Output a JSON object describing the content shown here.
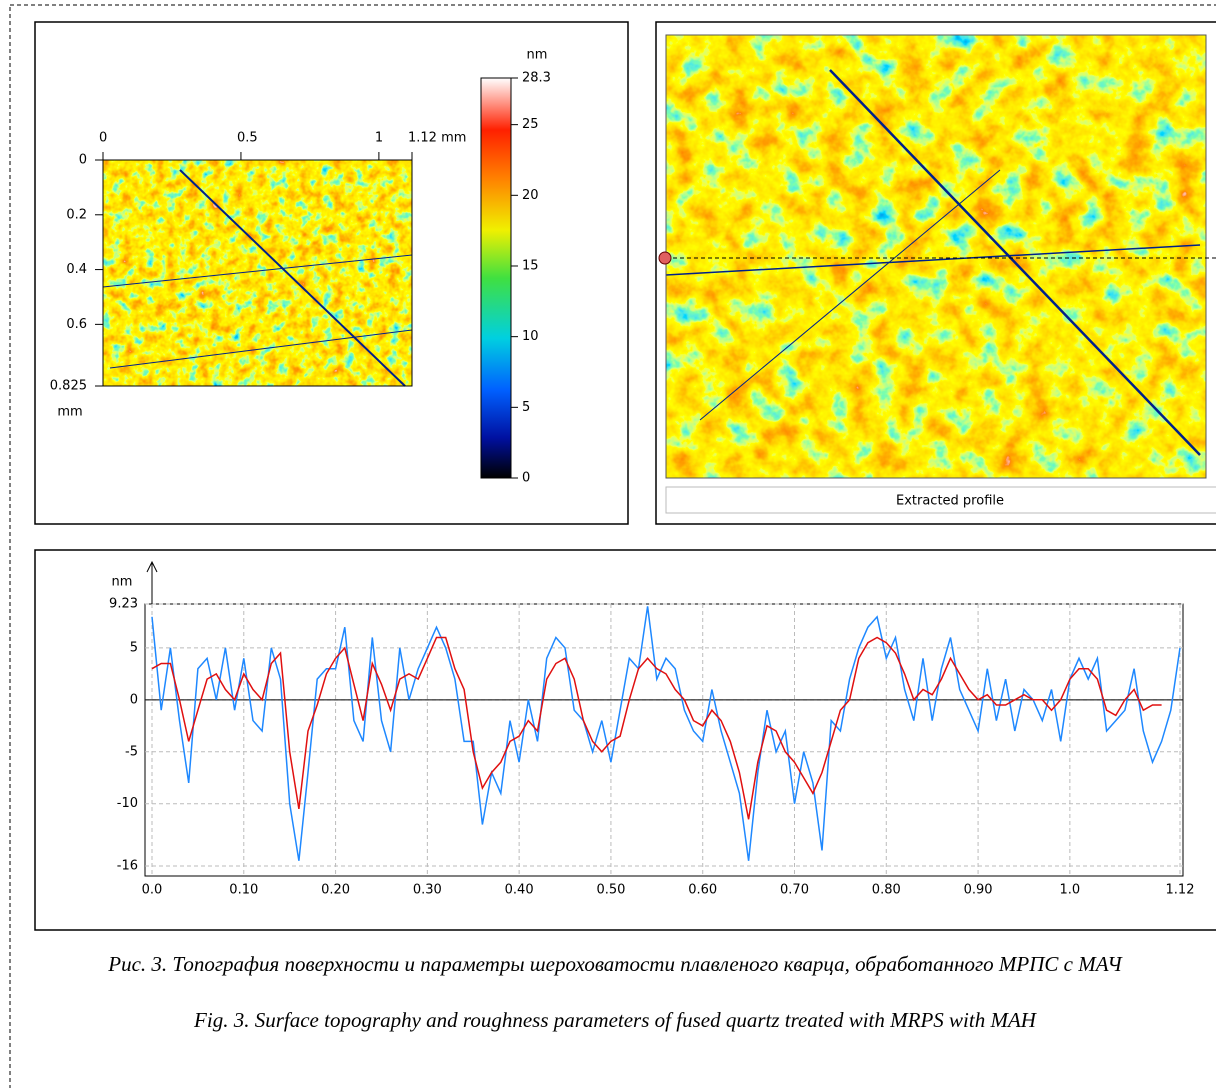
{
  "chart_data": [
    {
      "type": "map",
      "xlim": [
        0,
        1.12
      ],
      "ylim": [
        0,
        0.825
      ],
      "xticks": [
        0,
        0.5,
        1,
        {
          "value": 1.12,
          "label": "1.12 mm"
        }
      ],
      "yticks": [
        0,
        0.2,
        0.4,
        0.6,
        {
          "value": 0.825,
          "label": "0.825"
        }
      ],
      "y_label": "mm",
      "colorbar": {
        "label": "nm",
        "lim": [
          0,
          28.3
        ],
        "ticks": [
          0,
          5,
          10,
          15,
          20,
          25,
          28.3
        ]
      }
    },
    {
      "type": "map",
      "button": "Extracted profile"
    },
    {
      "type": "line",
      "y_label": "nm",
      "grid": true,
      "xlim": [
        0,
        1.12
      ],
      "ylim": [
        -16,
        9.23
      ],
      "xticks": [
        {
          "value": 0,
          "label": "0.0"
        },
        {
          "value": 0.1,
          "label": "0.10"
        },
        {
          "value": 0.2,
          "label": "0.20"
        },
        {
          "value": 0.3,
          "label": "0.30"
        },
        {
          "value": 0.4,
          "label": "0.40"
        },
        {
          "value": 0.5,
          "label": "0.50"
        },
        {
          "value": 0.6,
          "label": "0.60"
        },
        {
          "value": 0.7,
          "label": "0.70"
        },
        {
          "value": 0.8,
          "label": "0.80"
        },
        {
          "value": 0.9,
          "label": "0.90"
        },
        {
          "value": 1,
          "label": "1.0"
        },
        1.12
      ],
      "yticks": [
        -16,
        -10,
        -5,
        0,
        5,
        9.23
      ],
      "x": [
        0,
        0.01,
        0.02,
        0.03,
        0.04,
        0.05,
        0.06,
        0.07,
        0.08,
        0.09,
        0.1,
        0.11,
        0.12,
        0.13,
        0.14,
        0.15,
        0.16,
        0.17,
        0.18,
        0.19,
        0.2,
        0.21,
        0.22,
        0.23,
        0.24,
        0.25,
        0.26,
        0.27,
        0.28,
        0.29,
        0.3,
        0.31,
        0.32,
        0.33,
        0.34,
        0.35,
        0.36,
        0.37,
        0.38,
        0.39,
        0.4,
        0.41,
        0.42,
        0.43,
        0.44,
        0.45,
        0.46,
        0.47,
        0.48,
        0.49,
        0.5,
        0.51,
        0.52,
        0.53,
        0.54,
        0.55,
        0.56,
        0.57,
        0.58,
        0.59,
        0.6,
        0.61,
        0.62,
        0.63,
        0.64,
        0.65,
        0.66,
        0.67,
        0.68,
        0.69,
        0.7,
        0.71,
        0.72,
        0.73,
        0.74,
        0.75,
        0.76,
        0.77,
        0.78,
        0.79,
        0.8,
        0.81,
        0.82,
        0.83,
        0.84,
        0.85,
        0.86,
        0.87,
        0.88,
        0.89,
        0.9,
        0.91,
        0.92,
        0.93,
        0.94,
        0.95,
        0.96,
        0.97,
        0.98,
        0.99,
        1,
        1.01,
        1.02,
        1.03,
        1.04,
        1.05,
        1.06,
        1.07,
        1.08,
        1.09,
        1.1,
        1.11,
        1.12
      ],
      "series": [
        {
          "color": "#1e88ff",
          "values": [
            8,
            -1,
            5,
            -2,
            -8,
            3,
            4,
            0,
            5,
            -1,
            4,
            -2,
            -3,
            5,
            2,
            -10,
            -15.5,
            -7,
            2,
            3,
            3,
            7,
            -2,
            -4,
            6,
            -2,
            -5,
            5,
            0,
            3,
            5,
            7,
            5,
            2,
            -4,
            -4,
            -12,
            -7,
            -9,
            -2,
            -6,
            0,
            -4,
            4,
            6,
            5,
            -1,
            -2,
            -5,
            -2,
            -6,
            -1,
            4,
            3,
            9,
            2,
            4,
            3,
            -1,
            -3,
            -4,
            1,
            -3,
            -6,
            -9,
            -15.5,
            -7,
            -1,
            -5,
            -3,
            -10,
            -5,
            -8,
            -14.5,
            -2,
            -3,
            2,
            5,
            7,
            8,
            4,
            6,
            1,
            -2,
            4,
            -2,
            3,
            6,
            1,
            -1,
            -3,
            3,
            -2,
            2,
            -3,
            1,
            0,
            -2,
            1,
            -4,
            2,
            4,
            2,
            4,
            -3,
            -2,
            -1,
            3,
            -3,
            -6,
            -4,
            -1,
            5
          ]
        },
        {
          "color": "#e01010",
          "values": [
            3,
            3.5,
            3.5,
            0,
            -4,
            -1,
            2,
            2.5,
            1,
            0,
            2.5,
            1,
            0,
            3.5,
            4.5,
            -5,
            -10.5,
            -3,
            -0.5,
            2.5,
            4,
            5,
            1.5,
            -2,
            3.5,
            1.5,
            -1,
            2,
            2.5,
            2,
            4,
            6,
            6,
            3,
            1,
            -5,
            -8.5,
            -7,
            -6,
            -4,
            -3.5,
            -2,
            -3,
            2,
            3.5,
            4,
            2,
            -2,
            -4,
            -5,
            -4,
            -3.5,
            0,
            3,
            4,
            3,
            2.5,
            1,
            0,
            -2,
            -2.5,
            -1,
            -2,
            -4,
            -7,
            -11.5,
            -6,
            -2.5,
            -3,
            -5,
            -6,
            -7.5,
            -9,
            -7,
            -4,
            -1,
            0,
            4,
            5.5,
            6,
            5.5,
            4.5,
            2.5,
            0,
            1,
            0.5,
            2,
            4,
            2.5,
            1,
            0,
            0.5,
            -0.5,
            -0.5,
            0,
            0.5,
            0,
            0,
            -1,
            0,
            2,
            3,
            3,
            2,
            -1,
            -1.5,
            0,
            1,
            -1,
            -0.5,
            -0.5,
            null,
            null
          ]
        }
      ]
    }
  ],
  "caption": [
    "Рис. 3. Топография поверхности и параметры шероховатости плавленого кварца, обработанного МРПС с МАЧ",
    "Fig. 3. Surface topography and roughness parameters of fused quartz treated with MRPS with MAH"
  ]
}
